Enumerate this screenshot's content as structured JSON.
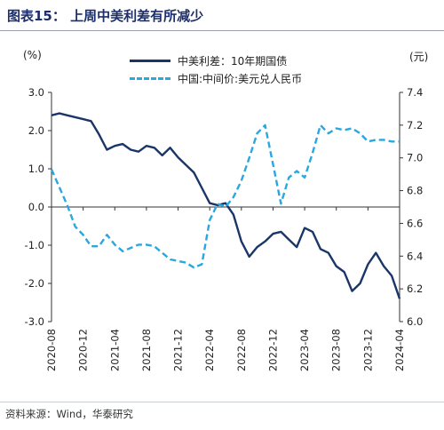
{
  "header": {
    "title": "图表15：  上周中美利差有所减少"
  },
  "units": {
    "left": "(%)",
    "right": "(元)"
  },
  "source": "资料来源：Wind，华泰研究",
  "colors": {
    "spread": "#1a3668",
    "usdcny": "#29a8e0",
    "title": "#1c2f6b"
  },
  "chart_data": {
    "type": "line",
    "legend_position": "top-center",
    "grid": false,
    "y_left": {
      "label": "(%)",
      "range": [
        -3.0,
        3.0
      ],
      "ticks": [
        3.0,
        2.0,
        1.0,
        0.0,
        -1.0,
        -2.0,
        -3.0
      ],
      "tick_labels": [
        "3.0",
        "2.0",
        "1.0",
        "0.0",
        "-1.0",
        "-2.0",
        "-3.0"
      ]
    },
    "y_right": {
      "label": "(元)",
      "range": [
        6.0,
        7.4
      ],
      "ticks": [
        7.4,
        7.2,
        7.0,
        6.8,
        6.6,
        6.4,
        6.2,
        6.0
      ],
      "tick_labels": [
        "7.4",
        "7.2",
        "7.0",
        "6.8",
        "6.6",
        "6.4",
        "6.2",
        "6.0"
      ]
    },
    "x_axis": {
      "range": [
        "2020-08",
        "2024-04"
      ],
      "ticks": [
        "2020-08",
        "2020-12",
        "2021-04",
        "2021-08",
        "2021-12",
        "2022-04",
        "2022-08",
        "2022-12",
        "2023-04",
        "2023-08",
        "2023-12",
        "2024-04"
      ]
    },
    "series": [
      {
        "name": "中美利差：10年期国债",
        "axis": "left",
        "style": "solid",
        "color": "#1a3668",
        "x": [
          "2020-08",
          "2020-09",
          "2020-10",
          "2020-11",
          "2020-12",
          "2021-01",
          "2021-02",
          "2021-03",
          "2021-04",
          "2021-05",
          "2021-06",
          "2021-07",
          "2021-08",
          "2021-09",
          "2021-10",
          "2021-11",
          "2021-12",
          "2022-01",
          "2022-02",
          "2022-03",
          "2022-04",
          "2022-05",
          "2022-06",
          "2022-07",
          "2022-08",
          "2022-09",
          "2022-10",
          "2022-11",
          "2022-12",
          "2023-01",
          "2023-02",
          "2023-03",
          "2023-04",
          "2023-05",
          "2023-06",
          "2023-07",
          "2023-08",
          "2023-09",
          "2023-10",
          "2023-11",
          "2023-12",
          "2024-01",
          "2024-02",
          "2024-03",
          "2024-04"
        ],
        "values": [
          2.4,
          2.45,
          2.4,
          2.35,
          2.3,
          2.25,
          1.9,
          1.5,
          1.6,
          1.65,
          1.5,
          1.45,
          1.6,
          1.55,
          1.35,
          1.55,
          1.3,
          1.1,
          0.9,
          0.5,
          0.1,
          0.05,
          0.1,
          -0.2,
          -0.9,
          -1.3,
          -1.05,
          -0.9,
          -0.7,
          -0.65,
          -0.85,
          -1.05,
          -0.55,
          -0.65,
          -1.1,
          -1.2,
          -1.55,
          -1.7,
          -2.2,
          -2.0,
          -1.5,
          -1.2,
          -1.55,
          -1.8,
          -2.4
        ]
      },
      {
        "name": "中国:中间价:美元兑人民币",
        "axis": "right",
        "style": "dashed",
        "color": "#29a8e0",
        "x": [
          "2020-08",
          "2020-09",
          "2020-10",
          "2020-11",
          "2020-12",
          "2021-01",
          "2021-02",
          "2021-03",
          "2021-04",
          "2021-05",
          "2021-06",
          "2021-07",
          "2021-08",
          "2021-09",
          "2021-10",
          "2021-11",
          "2021-12",
          "2022-01",
          "2022-02",
          "2022-03",
          "2022-04",
          "2022-05",
          "2022-06",
          "2022-07",
          "2022-08",
          "2022-09",
          "2022-10",
          "2022-11",
          "2022-12",
          "2023-01",
          "2023-02",
          "2023-03",
          "2023-04",
          "2023-05",
          "2023-06",
          "2023-07",
          "2023-08",
          "2023-09",
          "2023-10",
          "2023-11",
          "2023-12",
          "2024-01",
          "2024-02",
          "2024-03",
          "2024-04"
        ],
        "values": [
          6.93,
          6.82,
          6.71,
          6.58,
          6.53,
          6.46,
          6.46,
          6.53,
          6.47,
          6.43,
          6.45,
          6.47,
          6.47,
          6.46,
          6.42,
          6.38,
          6.37,
          6.36,
          6.33,
          6.35,
          6.62,
          6.72,
          6.7,
          6.76,
          6.86,
          7.0,
          7.15,
          7.2,
          6.96,
          6.72,
          6.88,
          6.92,
          6.88,
          7.03,
          7.2,
          7.15,
          7.18,
          7.17,
          7.18,
          7.15,
          7.1,
          7.11,
          7.11,
          7.1,
          7.1
        ]
      }
    ]
  }
}
